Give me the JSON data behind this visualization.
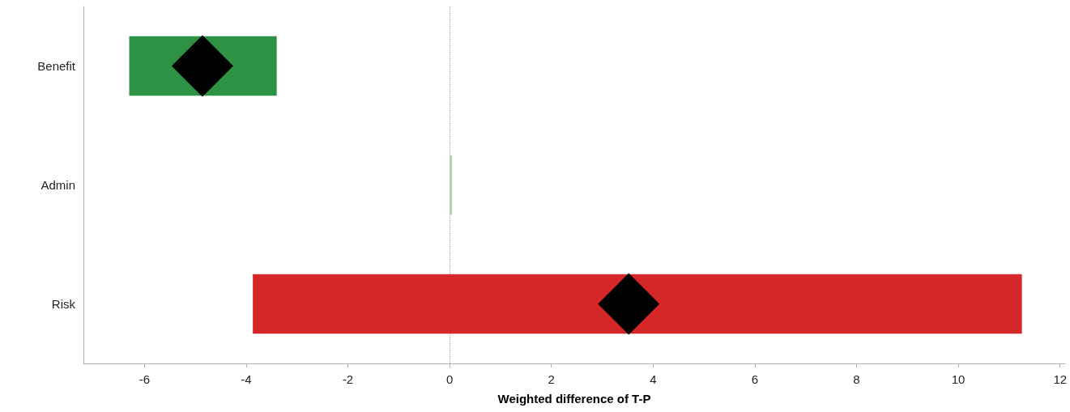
{
  "chart_data": {
    "type": "bar",
    "orientation": "horizontal",
    "xlabel": "Weighted difference of T-P",
    "categories": [
      "Benefit",
      "Admin",
      "Risk"
    ],
    "series": [
      {
        "values": [
          2.9,
          0.02,
          15.12
        ],
        "base": [
          -6.3,
          0,
          -3.87
        ],
        "colors": [
          "#2e9244",
          "#a6d9a6",
          "#d62728"
        ]
      },
      {
        "type": "scatter",
        "x": [
          "Benefit",
          "Admin",
          "Risk"
        ],
        "values": [
          -4.86,
          null,
          3.52
        ],
        "color": "#000000",
        "marker": "diamond"
      }
    ],
    "xlim": [
      -7.2,
      12.1
    ],
    "xticks": [
      -6,
      -4,
      -2,
      0,
      2,
      4,
      6,
      8,
      10,
      12
    ],
    "ref_lines": [
      {
        "axis": "x",
        "value": 0,
        "color": "#a0a0a0",
        "line_style": "dotted"
      }
    ],
    "grid": false
  }
}
